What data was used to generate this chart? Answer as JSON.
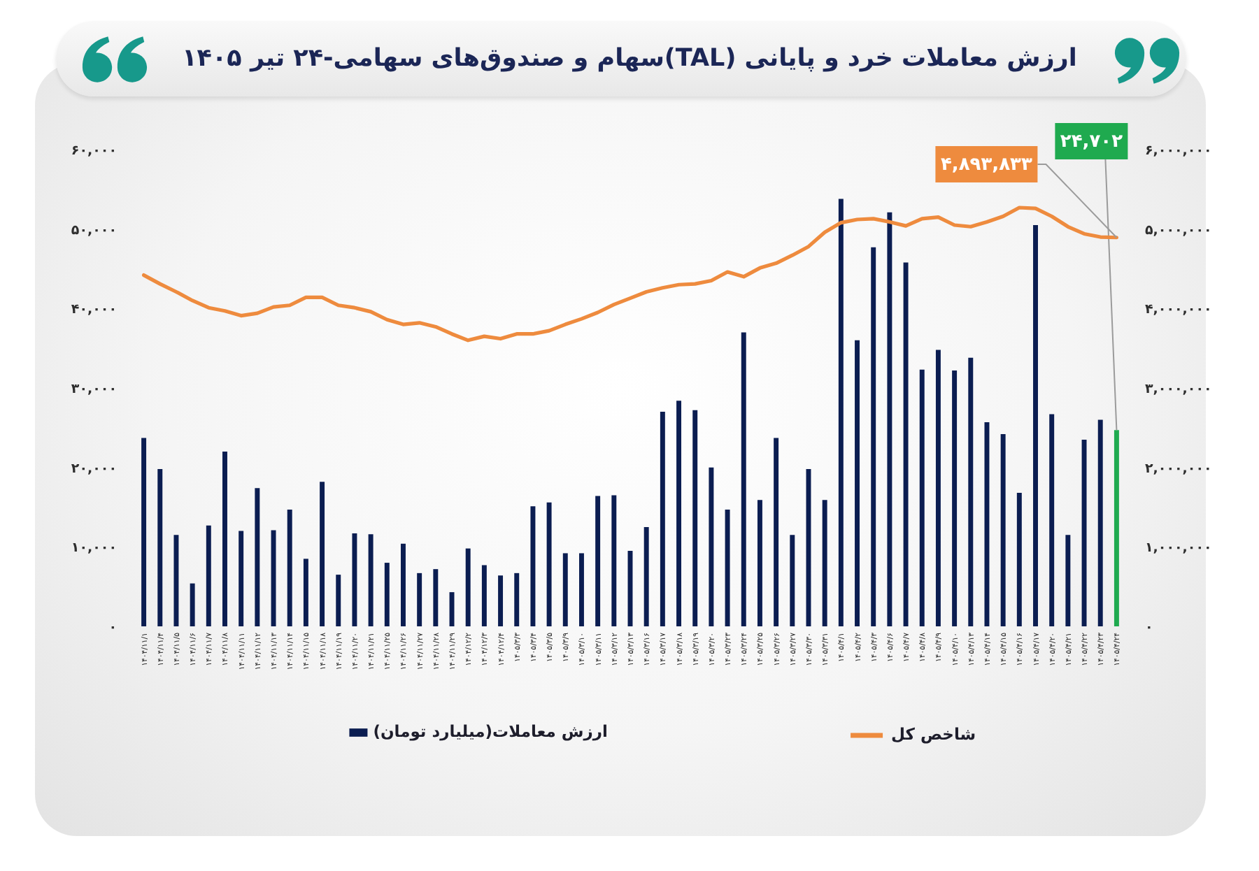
{
  "chart_data": {
    "type": "bar",
    "title": "ارزش معاملات خرد و پایانی (TAL)سهام و صندوق‌های سهامی-۲۴ تیر ۱۴۰۵",
    "categories": [
      "۱۴۰۴/۱۱/۱",
      "۱۴۰۴/۱۱/۴",
      "۱۴۰۴/۱۱/۵",
      "۱۴۰۴/۱۱/۶",
      "۱۴۰۴/۱۱/۷",
      "۱۴۰۴/۱۱/۸",
      "۱۴۰۴/۱۱/۱۱",
      "۱۴۰۴/۱۱/۱۲",
      "۱۴۰۴/۱۱/۱۳",
      "۱۴۰۴/۱۱/۱۴",
      "۱۴۰۴/۱۱/۱۵",
      "۱۴۰۴/۱۱/۱۸",
      "۱۴۰۴/۱۱/۱۹",
      "۱۴۰۴/۱۱/۲۰",
      "۱۴۰۴/۱۱/۲۱",
      "۱۴۰۴/۱۱/۲۵",
      "۱۴۰۴/۱۱/۲۶",
      "۱۴۰۴/۱۱/۲۷",
      "۱۴۰۴/۱۱/۲۸",
      "۱۴۰۴/۱۱/۲۹",
      "۱۴۰۴/۱۲/۲",
      "۱۴۰۴/۱۲/۳",
      "۱۴۰۴/۱۲/۴",
      "۱۴۰۵/۳/۳",
      "۱۴۰۵/۳/۴",
      "۱۴۰۵/۳/۵",
      "۱۴۰۵/۳/۹",
      "۱۴۰۵/۳/۱۰",
      "۱۴۰۵/۳/۱۱",
      "۱۴۰۵/۳/۱۲",
      "۱۴۰۵/۳/۱۳",
      "۱۴۰۵/۳/۱۶",
      "۱۴۰۵/۳/۱۷",
      "۱۴۰۵/۳/۱۸",
      "۱۴۰۵/۳/۱۹",
      "۱۴۰۵/۳/۲۰",
      "۱۴۰۵/۳/۲۳",
      "۱۴۰۵/۳/۲۴",
      "۱۴۰۵/۳/۲۵",
      "۱۴۰۵/۳/۲۶",
      "۱۴۰۵/۳/۲۷",
      "۱۴۰۵/۳/۳۰",
      "۱۴۰۵/۳/۳۱",
      "۱۴۰۵/۴/۱",
      "۱۴۰۵/۴/۲",
      "۱۴۰۵/۴/۳",
      "۱۴۰۵/۴/۶",
      "۱۴۰۵/۴/۷",
      "۱۴۰۵/۴/۸",
      "۱۴۰۵/۴/۹",
      "۱۴۰۵/۴/۱۰",
      "۱۴۰۵/۴/۱۳",
      "۱۴۰۵/۴/۱۴",
      "۱۴۰۵/۴/۱۵",
      "۱۴۰۵/۴/۱۶",
      "۱۴۰۵/۴/۱۷",
      "۱۴۰۵/۴/۲۰",
      "۱۴۰۵/۴/۲۱",
      "۱۴۰۵/۴/۲۲",
      "۱۴۰۵/۴/۲۳",
      "۱۴۰۵/۴/۲۴"
    ],
    "ylim": [
      0,
      60000
    ],
    "yticks": [
      {
        "value": 0,
        "label": "۰"
      },
      {
        "value": 10000,
        "label": "۱۰,۰۰۰"
      },
      {
        "value": 20000,
        "label": "۲۰,۰۰۰"
      },
      {
        "value": 30000,
        "label": "۳۰,۰۰۰"
      },
      {
        "value": 40000,
        "label": "۴۰,۰۰۰"
      },
      {
        "value": 50000,
        "label": "۵۰,۰۰۰"
      },
      {
        "value": 60000,
        "label": "۶۰,۰۰۰"
      }
    ],
    "y2lim": [
      0,
      6000000
    ],
    "y2ticks": [
      {
        "value": 0,
        "label": "۰"
      },
      {
        "value": 1000000,
        "label": "۱,۰۰۰,۰۰۰"
      },
      {
        "value": 2000000,
        "label": "۲,۰۰۰,۰۰۰"
      },
      {
        "value": 3000000,
        "label": "۳,۰۰۰,۰۰۰"
      },
      {
        "value": 4000000,
        "label": "۴,۰۰۰,۰۰۰"
      },
      {
        "value": 5000000,
        "label": "۵,۰۰۰,۰۰۰"
      },
      {
        "value": 6000000,
        "label": "۶,۰۰۰,۰۰۰"
      }
    ],
    "legend": "bottom",
    "series": [
      {
        "name": "ارزش معاملات(میلیارد تومان)",
        "color": "#0b1d51",
        "colors": [
          "#0b1d51",
          "#0b1d51",
          "#0b1d51",
          "#0b1d51",
          "#0b1d51",
          "#0b1d51",
          "#0b1d51",
          "#0b1d51",
          "#0b1d51",
          "#0b1d51",
          "#0b1d51",
          "#0b1d51",
          "#0b1d51",
          "#0b1d51",
          "#0b1d51",
          "#0b1d51",
          "#0b1d51",
          "#0b1d51",
          "#0b1d51",
          "#0b1d51",
          "#0b1d51",
          "#0b1d51",
          "#0b1d51",
          "#0b1d51",
          "#0b1d51",
          "#0b1d51",
          "#0b1d51",
          "#0b1d51",
          "#0b1d51",
          "#0b1d51",
          "#0b1d51",
          "#0b1d51",
          "#0b1d51",
          "#0b1d51",
          "#0b1d51",
          "#0b1d51",
          "#0b1d51",
          "#0b1d51",
          "#0b1d51",
          "#0b1d51",
          "#0b1d51",
          "#0b1d51",
          "#0b1d51",
          "#0b1d51",
          "#0b1d51",
          "#0b1d51",
          "#0b1d51",
          "#0b1d51",
          "#0b1d51",
          "#0b1d51",
          "#0b1d51",
          "#0b1d51",
          "#0b1d51",
          "#0b1d51",
          "#0b1d51",
          "#0b1d51",
          "#0b1d51",
          "#0b1d51",
          "#0b1d51",
          "#0b1d51",
          "#1faa4f"
        ],
        "values": [
          23700,
          19800,
          11500,
          5400,
          12700,
          22000,
          12000,
          17400,
          12100,
          14700,
          8500,
          18200,
          6500,
          11700,
          11600,
          8000,
          10400,
          6700,
          7200,
          4300,
          9800,
          7700,
          6400,
          6700,
          15100,
          15600,
          9200,
          9200,
          16400,
          16500,
          9500,
          12500,
          27000,
          28400,
          27200,
          20000,
          14700,
          37000,
          15900,
          23700,
          11500,
          19800,
          15900,
          53800,
          36000,
          47700,
          52100,
          45800,
          32300,
          34800,
          32200,
          33800,
          25700,
          24200,
          16800,
          50500,
          26700,
          11500,
          23500,
          26000,
          24702
        ],
        "value_labels": [
          null,
          null,
          null,
          null,
          null,
          null,
          null,
          null,
          null,
          null,
          null,
          null,
          null,
          null,
          null,
          null,
          null,
          null,
          null,
          null,
          null,
          null,
          null,
          null,
          null,
          null,
          null,
          null,
          null,
          null,
          null,
          null,
          null,
          null,
          null,
          null,
          null,
          null,
          null,
          null,
          null,
          null,
          null,
          null,
          null,
          null,
          null,
          null,
          null,
          null,
          null,
          null,
          null,
          null,
          null,
          null,
          null,
          null,
          null,
          null,
          "۲۴,۷۰۲"
        ]
      },
      {
        "name": "شاخص کل",
        "type": "line",
        "axis": "y2",
        "color": "#ee8b3e",
        "values": [
          4420000,
          4310000,
          4210000,
          4100000,
          4010000,
          3970000,
          3910000,
          3940000,
          4020000,
          4040000,
          4140000,
          4140000,
          4040000,
          4010000,
          3960000,
          3860000,
          3800000,
          3820000,
          3770000,
          3680000,
          3600000,
          3650000,
          3620000,
          3680000,
          3680000,
          3720000,
          3800000,
          3870000,
          3950000,
          4050000,
          4130000,
          4210000,
          4260000,
          4300000,
          4310000,
          4350000,
          4460000,
          4400000,
          4510000,
          4570000,
          4670000,
          4780000,
          4960000,
          5080000,
          5120000,
          5130000,
          5090000,
          5040000,
          5130000,
          5150000,
          5050000,
          5030000,
          5090000,
          5160000,
          5270000,
          5260000,
          5160000,
          5030000,
          4940000,
          4900000,
          4893833
        ],
        "value_labels": [
          null,
          null,
          null,
          null,
          null,
          null,
          null,
          null,
          null,
          null,
          null,
          null,
          null,
          null,
          null,
          null,
          null,
          null,
          null,
          null,
          null,
          null,
          null,
          null,
          null,
          null,
          null,
          null,
          null,
          null,
          null,
          null,
          null,
          null,
          null,
          null,
          null,
          null,
          null,
          null,
          null,
          null,
          null,
          null,
          null,
          null,
          null,
          null,
          null,
          null,
          null,
          null,
          null,
          null,
          null,
          null,
          null,
          null,
          null,
          null,
          "۴,۸۹۳,۸۳۳"
        ]
      }
    ]
  }
}
